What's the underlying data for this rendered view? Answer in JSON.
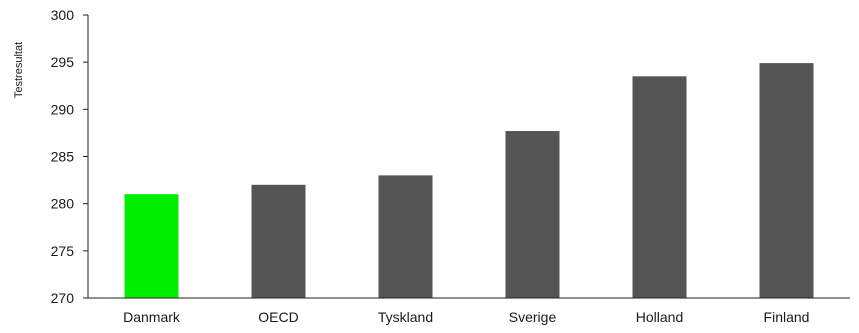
{
  "chart_data": {
    "type": "bar",
    "title": "",
    "xlabel": "",
    "ylabel": "Testresultat",
    "categories": [
      "Danmark",
      "OECD",
      "Tyskland",
      "Sverige",
      "Holland",
      "Finland"
    ],
    "values": [
      281,
      282,
      283,
      287.7,
      293.5,
      294.9
    ],
    "bar_colors": [
      "#00ee00",
      "#555555",
      "#555555",
      "#555555",
      "#555555",
      "#555555"
    ],
    "ylim": [
      270,
      300
    ],
    "yticks": [
      270,
      275,
      280,
      285,
      290,
      295,
      300
    ],
    "grid": false,
    "legend": "none"
  }
}
